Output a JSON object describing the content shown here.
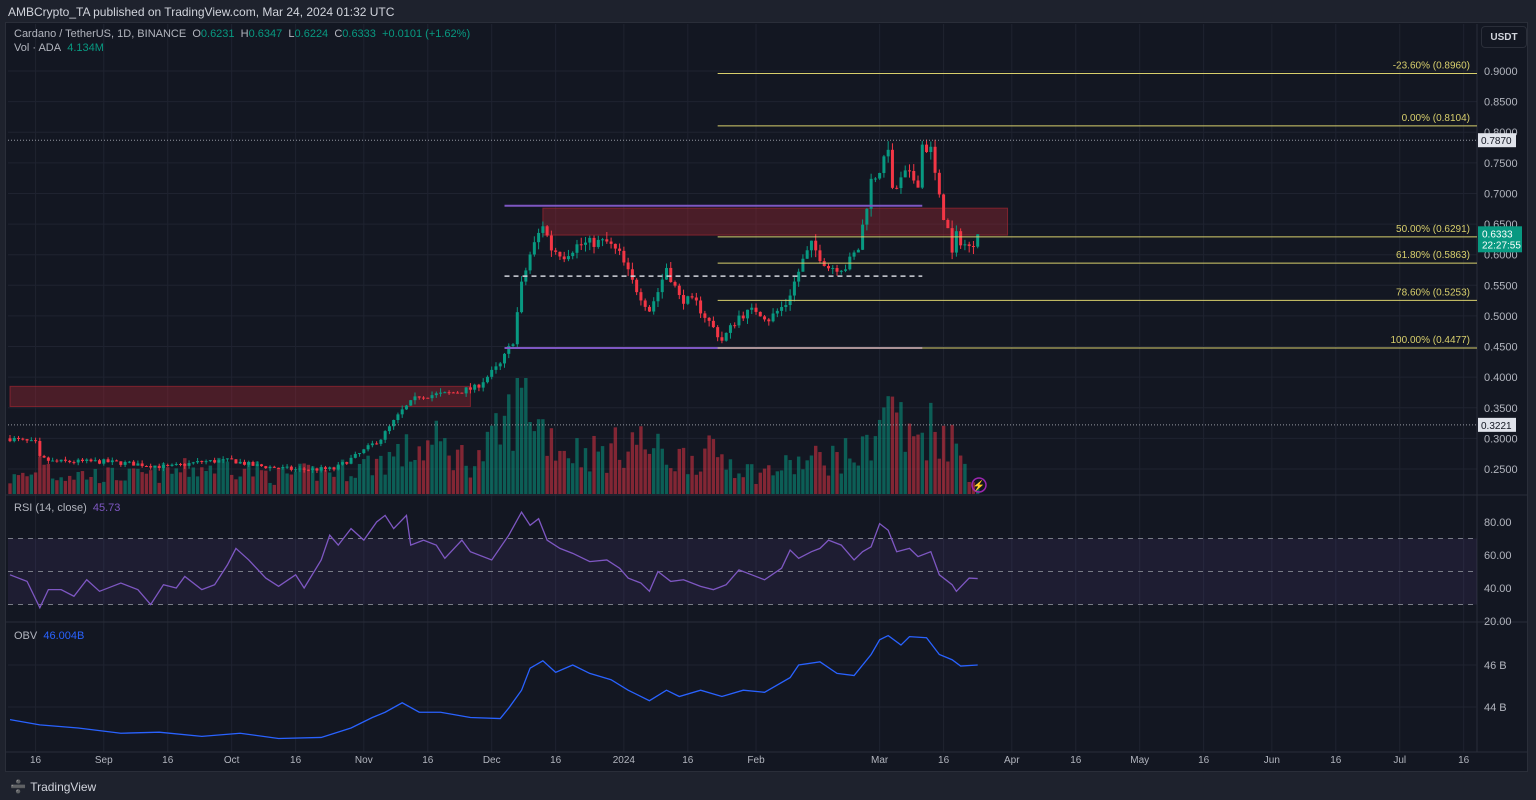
{
  "header": {
    "published": "AMBCrypto_TA published on TradingView.com, Mar 24, 2024 01:32 UTC"
  },
  "legend": {
    "symbol": "Cardano / TetherUS, 1D, BINANCE",
    "o_label": "O",
    "o": "0.6231",
    "h_label": "H",
    "h": "0.6347",
    "l_label": "L",
    "l": "0.6224",
    "c_label": "C",
    "c": "0.6333",
    "change": "+0.0101 (+1.62%)",
    "vol_label": "Vol · ADA",
    "vol": "4.134M",
    "rsi_label": "RSI (14, close)",
    "rsi": "45.73",
    "obv_label": "OBV",
    "obv": "46.004B"
  },
  "currency": "USDT",
  "footer": {
    "brand": "TradingView"
  },
  "colors": {
    "up": "#089981",
    "down": "#f23645",
    "fib": "#d8cf6c",
    "range": "#7e57c2",
    "rsi": "#7e57c2",
    "obv": "#2962ff",
    "bg": "#131722",
    "grid": "#1f2330"
  },
  "chart_data": {
    "type": "candlestick",
    "title": "Cardano / TetherUS, 1D, BINANCE",
    "x_unit": "days since 2023-08-10",
    "start_date": "2023-08-10",
    "last_price": "0.6333",
    "countdown": "22:27:55",
    "price_axis": {
      "min": 0.25,
      "max": 0.9,
      "step": 0.05,
      "decimals": 4
    },
    "close_waypoints": [
      [
        0,
        0.3
      ],
      [
        6,
        0.292
      ],
      [
        7,
        0.268
      ],
      [
        10,
        0.262
      ],
      [
        22,
        0.262
      ],
      [
        30,
        0.258
      ],
      [
        37,
        0.253
      ],
      [
        45,
        0.262
      ],
      [
        52,
        0.264
      ],
      [
        57,
        0.256
      ],
      [
        67,
        0.249
      ],
      [
        76,
        0.25
      ],
      [
        82,
        0.275
      ],
      [
        87,
        0.3
      ],
      [
        92,
        0.345
      ],
      [
        96,
        0.37
      ],
      [
        102,
        0.372
      ],
      [
        109,
        0.382
      ],
      [
        115,
        0.42
      ],
      [
        118,
        0.46
      ],
      [
        120,
        0.55
      ],
      [
        122,
        0.6
      ],
      [
        125,
        0.65
      ],
      [
        127,
        0.61
      ],
      [
        130,
        0.6
      ],
      [
        133,
        0.615
      ],
      [
        137,
        0.62
      ],
      [
        140,
        0.62
      ],
      [
        143,
        0.6
      ],
      [
        146,
        0.555
      ],
      [
        150,
        0.51
      ],
      [
        152,
        0.54
      ],
      [
        154,
        0.58
      ],
      [
        157,
        0.53
      ],
      [
        161,
        0.52
      ],
      [
        165,
        0.48
      ],
      [
        167,
        0.46
      ],
      [
        171,
        0.5
      ],
      [
        175,
        0.51
      ],
      [
        178,
        0.495
      ],
      [
        182,
        0.52
      ],
      [
        186,
        0.59
      ],
      [
        188,
        0.615
      ],
      [
        192,
        0.58
      ],
      [
        196,
        0.58
      ],
      [
        199,
        0.61
      ],
      [
        202,
        0.72
      ],
      [
        205,
        0.75
      ],
      [
        206,
        0.78
      ],
      [
        207,
        0.7
      ],
      [
        210,
        0.73
      ],
      [
        213,
        0.72
      ],
      [
        214,
        0.78
      ],
      [
        216,
        0.77
      ],
      [
        218,
        0.69
      ],
      [
        220,
        0.64
      ],
      [
        221,
        0.6
      ],
      [
        222,
        0.63
      ],
      [
        225,
        0.61
      ],
      [
        227,
        0.6333
      ]
    ],
    "volume_waypoints": [
      [
        0,
        15
      ],
      [
        6,
        20
      ],
      [
        7,
        45
      ],
      [
        10,
        20
      ],
      [
        30,
        18
      ],
      [
        52,
        30
      ],
      [
        62,
        18
      ],
      [
        80,
        25
      ],
      [
        92,
        40
      ],
      [
        100,
        50
      ],
      [
        109,
        30
      ],
      [
        115,
        60
      ],
      [
        119,
        90
      ],
      [
        121,
        110
      ],
      [
        124,
        70
      ],
      [
        130,
        45
      ],
      [
        140,
        40
      ],
      [
        146,
        55
      ],
      [
        155,
        35
      ],
      [
        166,
        40
      ],
      [
        175,
        20
      ],
      [
        190,
        35
      ],
      [
        200,
        40
      ],
      [
        203,
        70
      ],
      [
        206,
        80
      ],
      [
        207,
        110
      ],
      [
        210,
        50
      ],
      [
        217,
        70
      ],
      [
        220,
        60
      ],
      [
        224,
        30
      ],
      [
        227,
        10
      ]
    ],
    "rsi": {
      "label": "RSI (14, close)",
      "axis": [
        20,
        40,
        60,
        80
      ],
      "upper_band": 70,
      "middle": 50,
      "lower_band": 30,
      "values": [
        [
          0,
          48
        ],
        [
          4,
          44
        ],
        [
          7,
          28
        ],
        [
          9,
          39
        ],
        [
          12,
          39
        ],
        [
          15,
          35
        ],
        [
          18,
          45
        ],
        [
          21,
          38
        ],
        [
          26,
          43
        ],
        [
          30,
          39
        ],
        [
          33,
          30
        ],
        [
          36,
          42
        ],
        [
          39,
          40
        ],
        [
          41,
          47
        ],
        [
          45,
          39
        ],
        [
          48,
          42
        ],
        [
          51,
          54
        ],
        [
          53,
          64
        ],
        [
          56,
          57
        ],
        [
          60,
          46
        ],
        [
          63,
          41
        ],
        [
          67,
          48
        ],
        [
          69,
          40
        ],
        [
          73,
          57
        ],
        [
          75,
          72
        ],
        [
          77,
          66
        ],
        [
          80,
          76
        ],
        [
          83,
          69
        ],
        [
          86,
          80
        ],
        [
          88,
          84
        ],
        [
          90,
          76
        ],
        [
          93,
          84
        ],
        [
          94,
          66
        ],
        [
          97,
          69
        ],
        [
          100,
          66
        ],
        [
          102,
          58
        ],
        [
          106,
          69
        ],
        [
          108,
          62
        ],
        [
          113,
          57
        ],
        [
          117,
          72
        ],
        [
          120,
          86
        ],
        [
          122,
          78
        ],
        [
          124,
          82
        ],
        [
          126,
          69
        ],
        [
          129,
          64
        ],
        [
          132,
          61
        ],
        [
          136,
          56
        ],
        [
          140,
          57
        ],
        [
          143,
          52
        ],
        [
          145,
          46
        ],
        [
          148,
          43
        ],
        [
          150,
          38
        ],
        [
          152,
          50
        ],
        [
          155,
          44
        ],
        [
          158,
          45
        ],
        [
          162,
          41
        ],
        [
          165,
          39
        ],
        [
          168,
          42
        ],
        [
          171,
          51
        ],
        [
          174,
          48
        ],
        [
          177,
          45
        ],
        [
          181,
          52
        ],
        [
          183,
          63
        ],
        [
          185,
          58
        ],
        [
          188,
          62
        ],
        [
          190,
          64
        ],
        [
          192,
          69
        ],
        [
          195,
          66
        ],
        [
          198,
          57
        ],
        [
          200,
          62
        ],
        [
          202,
          65
        ],
        [
          204,
          79
        ],
        [
          206,
          75
        ],
        [
          208,
          62
        ],
        [
          211,
          64
        ],
        [
          213,
          59
        ],
        [
          216,
          62
        ],
        [
          218,
          48
        ],
        [
          221,
          42
        ],
        [
          222,
          38
        ],
        [
          225,
          46
        ],
        [
          227,
          45.73
        ]
      ]
    },
    "obv": {
      "label": "OBV",
      "unit": "B",
      "axis": [
        "44 B",
        "46 B"
      ],
      "axis_values": [
        44,
        46
      ],
      "values": [
        [
          0,
          43.4
        ],
        [
          7,
          43.15
        ],
        [
          16,
          43.0
        ],
        [
          26,
          42.75
        ],
        [
          35,
          42.8
        ],
        [
          45,
          42.6
        ],
        [
          54,
          42.75
        ],
        [
          63,
          42.5
        ],
        [
          73,
          42.55
        ],
        [
          80,
          43.0
        ],
        [
          85,
          43.5
        ],
        [
          88,
          43.75
        ],
        [
          92,
          44.2
        ],
        [
          96,
          43.75
        ],
        [
          101,
          43.75
        ],
        [
          108,
          43.5
        ],
        [
          115,
          43.45
        ],
        [
          117,
          43.95
        ],
        [
          120,
          44.8
        ],
        [
          122,
          45.85
        ],
        [
          125,
          46.2
        ],
        [
          128,
          45.65
        ],
        [
          132,
          46.0
        ],
        [
          136,
          45.6
        ],
        [
          141,
          45.3
        ],
        [
          145,
          44.8
        ],
        [
          150,
          44.3
        ],
        [
          154,
          44.8
        ],
        [
          157,
          44.5
        ],
        [
          162,
          44.8
        ],
        [
          167,
          44.5
        ],
        [
          172,
          44.8
        ],
        [
          177,
          44.7
        ],
        [
          183,
          45.4
        ],
        [
          185,
          46.0
        ],
        [
          190,
          46.15
        ],
        [
          194,
          45.6
        ],
        [
          198,
          45.5
        ],
        [
          202,
          46.5
        ],
        [
          204,
          47.2
        ],
        [
          206,
          47.4
        ],
        [
          209,
          46.95
        ],
        [
          211,
          47.35
        ],
        [
          215,
          47.3
        ],
        [
          218,
          46.5
        ],
        [
          221,
          46.25
        ],
        [
          223,
          45.95
        ],
        [
          227,
          46.0
        ]
      ]
    },
    "fib_levels": [
      {
        "label": "-23.60% (0.8960)",
        "price": 0.896
      },
      {
        "label": "0.00% (0.8104)",
        "price": 0.8104
      },
      {
        "label": "50.00% (0.6291)",
        "price": 0.6291
      },
      {
        "label": "61.80% (0.5863)",
        "price": 0.5863
      },
      {
        "label": "78.60% (0.5253)",
        "price": 0.5253
      },
      {
        "label": "100.00% (0.4477)",
        "price": 0.4477
      }
    ],
    "fib_start_day": 166,
    "range_lines": {
      "high": 0.68,
      "low": 0.4477,
      "mid": 0.565,
      "start_day": 116,
      "end_day": 214
    },
    "supply_zones": [
      {
        "top": 0.385,
        "bottom": 0.352,
        "start_day": 0,
        "end_day": 108
      },
      {
        "top": 0.676,
        "bottom": 0.632,
        "start_day": 125,
        "end_day": 234
      }
    ],
    "horizontal_marks": [
      {
        "price": 0.787,
        "label": "0.7870"
      },
      {
        "price": 0.3221,
        "label": "0.3221"
      }
    ],
    "time_axis": [
      {
        "day": 6,
        "label": "16"
      },
      {
        "day": 22,
        "label": "Sep"
      },
      {
        "day": 37,
        "label": "16"
      },
      {
        "day": 52,
        "label": "Oct"
      },
      {
        "day": 67,
        "label": "16"
      },
      {
        "day": 83,
        "label": "Nov"
      },
      {
        "day": 98,
        "label": "16"
      },
      {
        "day": 113,
        "label": "Dec"
      },
      {
        "day": 128,
        "label": "16"
      },
      {
        "day": 144,
        "label": "2024"
      },
      {
        "day": 159,
        "label": "16"
      },
      {
        "day": 175,
        "label": "Feb"
      },
      {
        "day": 204,
        "label": "Mar"
      },
      {
        "day": 219,
        "label": "16"
      },
      {
        "day": 235,
        "label": "Apr"
      },
      {
        "day": 250,
        "label": "16"
      },
      {
        "day": 265,
        "label": "May"
      },
      {
        "day": 280,
        "label": "16"
      },
      {
        "day": 296,
        "label": "Jun"
      },
      {
        "day": 311,
        "label": "16"
      },
      {
        "day": 326,
        "label": "Jul"
      },
      {
        "day": 341,
        "label": "16"
      }
    ]
  }
}
